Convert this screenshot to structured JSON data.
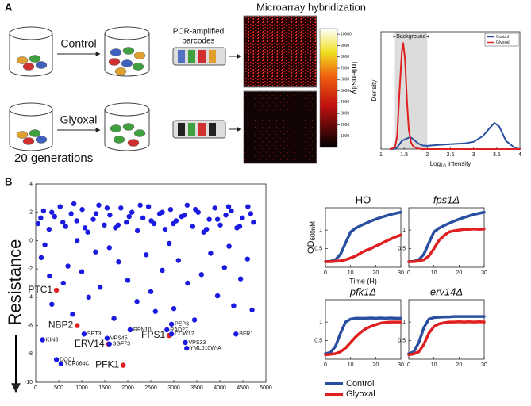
{
  "diagram": {
    "panel_a": "A",
    "panel_b": "B",
    "control_label": "Control",
    "glyoxal_label": "Glyoxal",
    "generations": "20 generations",
    "pcr_line1": "PCR-amplified",
    "pcr_line2": "barcodes",
    "array_title": "Microarray hybridization",
    "colorbar": {
      "label": "Intensity",
      "ticks": [
        1000,
        2000,
        3000,
        4000,
        5000,
        6000,
        7000,
        8000,
        9000,
        10000
      ],
      "lim": [
        0,
        10500
      ]
    },
    "resistance": "Resistance"
  },
  "chart_data": [
    {
      "type": "line",
      "ylabel": "Density",
      "xlabel_main": "Log",
      "xlabel_sub": "10",
      "xlabel_rest": " intensity",
      "annotation": "Background",
      "shade": [
        1.3,
        2.0
      ],
      "xlim": [
        1,
        4
      ],
      "ylim": [
        0,
        7.2
      ],
      "xticks": [
        1,
        1.5,
        2,
        2.5,
        3,
        3.5,
        4
      ],
      "legend": "top-right",
      "x": [
        1.2,
        1.3,
        1.35,
        1.4,
        1.45,
        1.48,
        1.52,
        1.56,
        1.6,
        1.65,
        1.7,
        1.8,
        1.9,
        2.0,
        2.2,
        2.5,
        2.8,
        3.0,
        3.2,
        3.35,
        3.45,
        3.55,
        3.7,
        3.9,
        4.0
      ],
      "series": [
        {
          "name": "Control",
          "color": "#2a4fa0",
          "values": [
            0,
            0.02,
            0.1,
            0.3,
            0.5,
            0.55,
            0.6,
            0.65,
            0.7,
            0.7,
            0.6,
            0.35,
            0.22,
            0.2,
            0.25,
            0.3,
            0.35,
            0.45,
            0.8,
            1.3,
            1.6,
            1.4,
            0.5,
            0.05,
            0
          ]
        },
        {
          "name": "Glyoxal",
          "color": "#e02020",
          "values": [
            0,
            0.1,
            0.8,
            3.5,
            6.0,
            6.5,
            5.5,
            3.0,
            1.2,
            0.4,
            0.15,
            0.03,
            0,
            0,
            0,
            0,
            0,
            0,
            0,
            0,
            0,
            0,
            0,
            0,
            0
          ]
        }
      ]
    },
    {
      "type": "scatter",
      "xlim": [
        0,
        5000
      ],
      "ylim": [
        -10,
        4
      ],
      "xticks": [
        0,
        500,
        1000,
        1500,
        2000,
        2500,
        3000,
        3500,
        4000,
        4500,
        5000
      ],
      "yticks": [
        -10,
        -8,
        -6,
        -4,
        -2,
        0,
        2,
        4
      ],
      "color": "#1a1ae0",
      "x": [
        50,
        170,
        290,
        410,
        530,
        650,
        770,
        890,
        1010,
        1130,
        1250,
        1370,
        1490,
        1610,
        1730,
        1850,
        1970,
        2090,
        2210,
        2330,
        2450,
        2570,
        2690,
        2810,
        2930,
        3050,
        3170,
        3290,
        3410,
        3530,
        3650,
        3770,
        3890,
        4010,
        4130,
        4250,
        4370,
        4490,
        4610,
        4730,
        110,
        350,
        590,
        830,
        1070,
        1310,
        1550,
        1790,
        2030,
        2270,
        2510,
        2750,
        2990,
        3230,
        3470,
        3710,
        3950,
        4190,
        4430,
        4670,
        120,
        300,
        350,
        600,
        700,
        800,
        1000,
        1150,
        1300,
        1400,
        1700,
        1800,
        2000,
        2200,
        2400,
        2500,
        2600,
        2750,
        3000,
        3100,
        3300,
        3450,
        3600,
        3800,
        3950,
        4100,
        4300,
        4450,
        4600,
        4700,
        200,
        1600,
        2900,
        4200,
        900
      ],
      "y": [
        1.2,
        2.1,
        0.8,
        1.7,
        2.4,
        1.0,
        1.9,
        1.4,
        2.2,
        0.6,
        1.5,
        2.5,
        1.1,
        1.8,
        0.9,
        2.3,
        1.3,
        2.0,
        0.7,
        1.6,
        2.4,
        1.2,
        1.9,
        0.8,
        2.2,
        1.4,
        1.7,
        2.5,
        1.0,
        2.0,
        0.6,
        1.5,
        2.3,
        1.1,
        1.8,
        2.1,
        0.9,
        1.6,
        2.4,
        1.3,
        1.6,
        2.0,
        1.3,
        2.6,
        0.9,
        1.9,
        2.3,
        1.1,
        1.7,
        2.5,
        1.4,
        2.0,
        1.2,
        1.8,
        2.2,
        0.8,
        1.5,
        2.4,
        1.0,
        1.9,
        -1.2,
        -2.5,
        -4.5,
        -3.0,
        -1.8,
        -5.2,
        -2.2,
        -4.0,
        -0.8,
        -3.3,
        -5.5,
        -1.5,
        -2.8,
        -4.3,
        -1.0,
        -3.6,
        -5.0,
        -2.1,
        -4.8,
        -1.4,
        -3.0,
        -5.6,
        -2.4,
        -0.9,
        -3.9,
        -1.9,
        -4.6,
        -2.7,
        -1.3,
        -4.9,
        -0.3,
        -0.5,
        -0.2,
        -0.4,
        0.0
      ],
      "labeled_points": {
        "labels": [
          "PTC1",
          "NBP2",
          "ERV14",
          "FPS1",
          "PFK1",
          "KIN3",
          "SPT3",
          "VPS45",
          "SGF73",
          "RPN10",
          "RAD27",
          "PEP3",
          "CCW12",
          "VPS33",
          "YML010W-A",
          "BFR1",
          "DCC1",
          "YCR064C"
        ],
        "x": [
          450,
          900,
          1580,
          2900,
          1900,
          150,
          1050,
          1550,
          1600,
          2050,
          2850,
          2950,
          2950,
          3250,
          3280,
          4350,
          450,
          550
        ],
        "y": [
          -3.5,
          -6.0,
          -7.3,
          -6.7,
          -8.8,
          -7.0,
          -6.6,
          -6.9,
          -7.3,
          -6.3,
          -6.3,
          -5.9,
          -6.6,
          -7.2,
          -7.6,
          -6.6,
          -8.4,
          -8.7
        ],
        "colors": [
          "#e02020",
          "#e02020",
          "#e02020",
          "#e02020",
          "#e02020",
          "#1a1ae0",
          "#1a1ae0",
          "#1a1ae0",
          "#1a1ae0",
          "#1a1ae0",
          "#1a1ae0",
          "#1a1ae0",
          "#1a1ae0",
          "#1a1ae0",
          "#1a1ae0",
          "#1a1ae0",
          "#1a1ae0",
          "#1a1ae0"
        ],
        "large": [
          true,
          true,
          true,
          true,
          true,
          false,
          false,
          false,
          false,
          false,
          false,
          false,
          false,
          false,
          false,
          false,
          false,
          false
        ]
      }
    },
    {
      "type": "line",
      "title": "HO",
      "ylabel": "OD",
      "ylabel_sub": "600nM",
      "xlabel": "Time (H)",
      "xlim": [
        0,
        30
      ],
      "ylim": [
        0,
        1.6
      ],
      "xticks": [
        0,
        10,
        20,
        30
      ],
      "yticks": [
        0.5,
        1
      ],
      "x": [
        0,
        2,
        4,
        6,
        8,
        10,
        12,
        14,
        16,
        18,
        20,
        22,
        24,
        26,
        28,
        30
      ],
      "series": [
        {
          "name": "Control",
          "color": "#2a4fa0",
          "values": [
            0.15,
            0.16,
            0.2,
            0.35,
            0.65,
            0.95,
            1.05,
            1.12,
            1.18,
            1.24,
            1.29,
            1.34,
            1.38,
            1.42,
            1.45,
            1.48
          ]
        },
        {
          "name": "Glyoxal",
          "color": "#e02020",
          "values": [
            0.15,
            0.15,
            0.16,
            0.17,
            0.2,
            0.25,
            0.3,
            0.38,
            0.45,
            0.5,
            0.57,
            0.63,
            0.7,
            0.76,
            0.82,
            0.87
          ]
        }
      ]
    },
    {
      "type": "line",
      "title": "fps1Δ",
      "xlim": [
        0,
        30
      ],
      "ylim": [
        0,
        1.6
      ],
      "xticks": [
        0,
        10,
        20,
        30
      ],
      "yticks": [
        0.5,
        1
      ],
      "x": [
        0,
        2,
        4,
        6,
        8,
        10,
        12,
        14,
        16,
        18,
        20,
        22,
        24,
        26,
        28,
        30
      ],
      "series": [
        {
          "name": "Control",
          "color": "#2a4fa0",
          "values": [
            0.15,
            0.16,
            0.2,
            0.35,
            0.65,
            0.95,
            1.05,
            1.12,
            1.18,
            1.24,
            1.29,
            1.34,
            1.38,
            1.42,
            1.45,
            1.48
          ]
        },
        {
          "name": "Glyoxal",
          "color": "#e02020",
          "values": [
            0.15,
            0.15,
            0.17,
            0.2,
            0.3,
            0.5,
            0.72,
            0.85,
            0.95,
            0.98,
            1.0,
            1.02,
            1.02,
            1.03,
            1.02,
            1.03
          ]
        }
      ]
    },
    {
      "type": "line",
      "title": "pfk1Δ",
      "xlim": [
        0,
        30
      ],
      "ylim": [
        0,
        1.6
      ],
      "xticks": [
        0,
        10,
        20,
        30
      ],
      "yticks": [
        0.5,
        1
      ],
      "x": [
        0,
        2,
        4,
        6,
        8,
        10,
        12,
        14,
        16,
        18,
        20,
        22,
        24,
        26,
        28,
        30
      ],
      "series": [
        {
          "name": "Control",
          "color": "#2a4fa0",
          "values": [
            0.15,
            0.18,
            0.35,
            0.7,
            1.0,
            1.08,
            1.1,
            1.1,
            1.1,
            1.11,
            1.1,
            1.11,
            1.1,
            1.11,
            1.1,
            1.1
          ]
        },
        {
          "name": "Glyoxal",
          "color": "#e02020",
          "values": [
            0.12,
            0.13,
            0.15,
            0.2,
            0.3,
            0.45,
            0.6,
            0.72,
            0.82,
            0.88,
            0.93,
            0.97,
            0.99,
            1.0,
            1.0,
            1.0
          ]
        }
      ]
    },
    {
      "type": "line",
      "title": "erv14Δ",
      "xlim": [
        0,
        30
      ],
      "ylim": [
        0,
        1.6
      ],
      "xticks": [
        0,
        10,
        20,
        30
      ],
      "yticks": [
        0.5,
        1
      ],
      "x": [
        0,
        2,
        4,
        6,
        8,
        10,
        12,
        14,
        16,
        18,
        20,
        22,
        24,
        26,
        28,
        30
      ],
      "series": [
        {
          "name": "Control",
          "color": "#2a4fa0",
          "values": [
            0.15,
            0.2,
            0.45,
            0.85,
            1.08,
            1.12,
            1.13,
            1.14,
            1.14,
            1.15,
            1.15,
            1.15,
            1.15,
            1.15,
            1.15,
            1.15
          ]
        },
        {
          "name": "Glyoxal",
          "color": "#e02020",
          "values": [
            0.12,
            0.14,
            0.2,
            0.4,
            0.7,
            0.88,
            0.95,
            0.98,
            1.0,
            1.0,
            1.01,
            1.0,
            1.01,
            1.0,
            1.01,
            1.0
          ]
        }
      ]
    }
  ]
}
